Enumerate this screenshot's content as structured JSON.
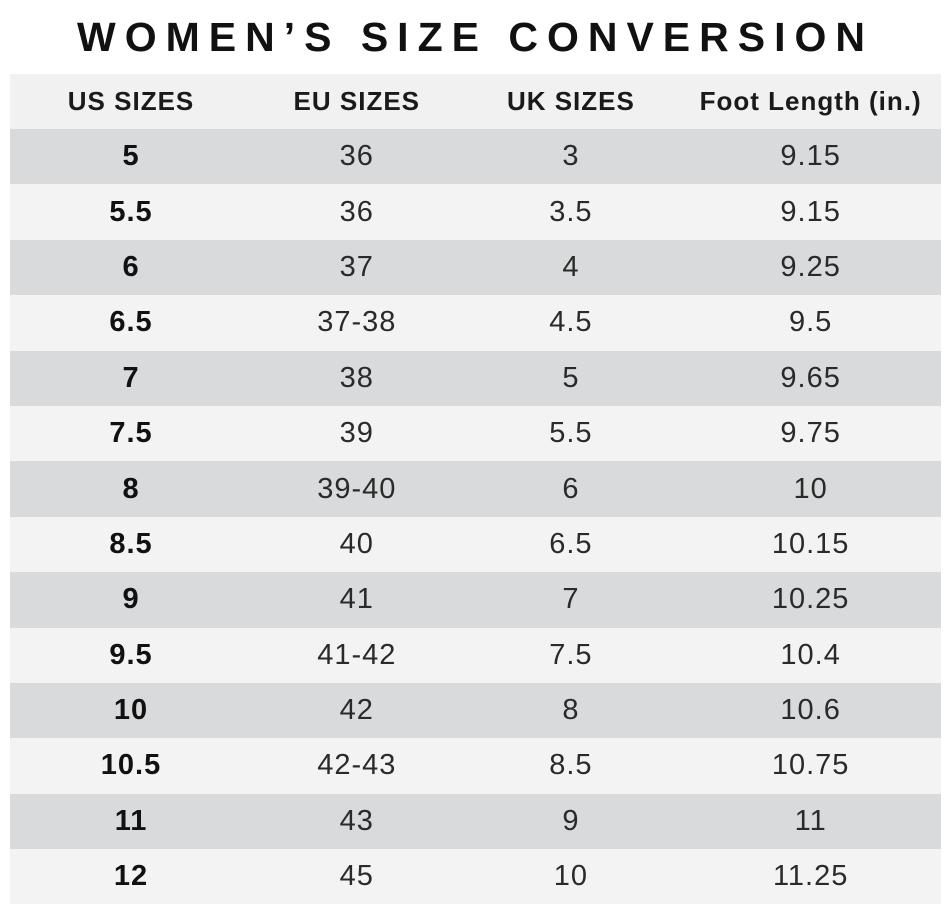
{
  "chart_data": {
    "type": "table",
    "title": "WOMEN’S SIZE CONVERSION",
    "columns": [
      "US SIZES",
      "EU SIZES",
      "UK SIZES",
      "Foot Length (in.)"
    ],
    "rows": [
      [
        "5",
        "36",
        "3",
        "9.15"
      ],
      [
        "5.5",
        "36",
        "3.5",
        "9.15"
      ],
      [
        "6",
        "37",
        "4",
        "9.25"
      ],
      [
        "6.5",
        "37-38",
        "4.5",
        "9.5"
      ],
      [
        "7",
        "38",
        "5",
        "9.65"
      ],
      [
        "7.5",
        "39",
        "5.5",
        "9.75"
      ],
      [
        "8",
        "39-40",
        "6",
        "10"
      ],
      [
        "8.5",
        "40",
        "6.5",
        "10.15"
      ],
      [
        "9",
        "41",
        "7",
        "10.25"
      ],
      [
        "9.5",
        "41-42",
        "7.5",
        "10.4"
      ],
      [
        "10",
        "42",
        "8",
        "10.6"
      ],
      [
        "10.5",
        "42-43",
        "8.5",
        "10.75"
      ],
      [
        "11",
        "43",
        "9",
        "11"
      ],
      [
        "12",
        "45",
        "10",
        "11.25"
      ]
    ],
    "layout": {
      "legend": "none",
      "grid": "off",
      "row_striping": "alternating"
    }
  },
  "colors": {
    "background": "#ffffff",
    "title_text": "#111111",
    "header_bg": "#f1f1f1",
    "row_dark": "#d9dadb",
    "row_light": "#f3f3f4",
    "cell_text": "#2a2a2a"
  }
}
